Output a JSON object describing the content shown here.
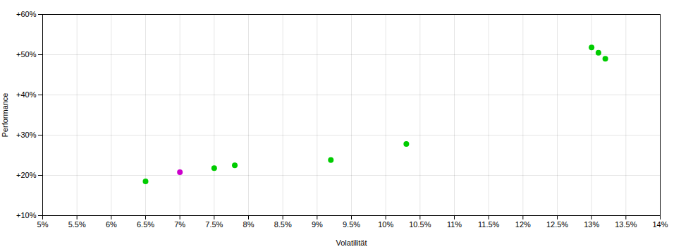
{
  "chart_data": {
    "type": "scatter",
    "xlabel": "Volatilität",
    "ylabel": "Performance",
    "series": [
      {
        "color": "#00cc00",
        "x": [
          0.065,
          0.075,
          0.078,
          0.092,
          0.103,
          0.13,
          0.131,
          0.132
        ],
        "values": [
          0.185,
          0.218,
          0.225,
          0.238,
          0.278,
          0.518,
          0.505,
          0.49
        ]
      },
      {
        "color": "#cc00cc",
        "x": [
          0.07
        ],
        "values": [
          0.208
        ]
      }
    ],
    "xlim": [
      0.05,
      0.14
    ],
    "ylim": [
      0.1,
      0.6
    ],
    "xticks": [
      {
        "value": 0.05,
        "label": "5%"
      },
      {
        "value": 0.055,
        "label": "5.5%"
      },
      {
        "value": 0.06,
        "label": "6%"
      },
      {
        "value": 0.065,
        "label": "6.5%"
      },
      {
        "value": 0.07,
        "label": "7%"
      },
      {
        "value": 0.075,
        "label": "7.5%"
      },
      {
        "value": 0.08,
        "label": "8%"
      },
      {
        "value": 0.085,
        "label": "8.5%"
      },
      {
        "value": 0.09,
        "label": "9%"
      },
      {
        "value": 0.095,
        "label": "9.5%"
      },
      {
        "value": 0.1,
        "label": "10%"
      },
      {
        "value": 0.105,
        "label": "10.5%"
      },
      {
        "value": 0.11,
        "label": "11%"
      },
      {
        "value": 0.115,
        "label": "11.5%"
      },
      {
        "value": 0.12,
        "label": "12%"
      },
      {
        "value": 0.125,
        "label": "12.5%"
      },
      {
        "value": 0.13,
        "label": "13%"
      },
      {
        "value": 0.135,
        "label": "13.5%"
      },
      {
        "value": 0.14,
        "label": "14%"
      }
    ],
    "yticks": [
      {
        "value": 0.1,
        "label": "+10%"
      },
      {
        "value": 0.2,
        "label": "+20%"
      },
      {
        "value": 0.3,
        "label": "+30%"
      },
      {
        "value": 0.4,
        "label": "+40%"
      },
      {
        "value": 0.5,
        "label": "+50%"
      },
      {
        "value": 0.6,
        "label": "+60%"
      }
    ],
    "grid": true
  }
}
